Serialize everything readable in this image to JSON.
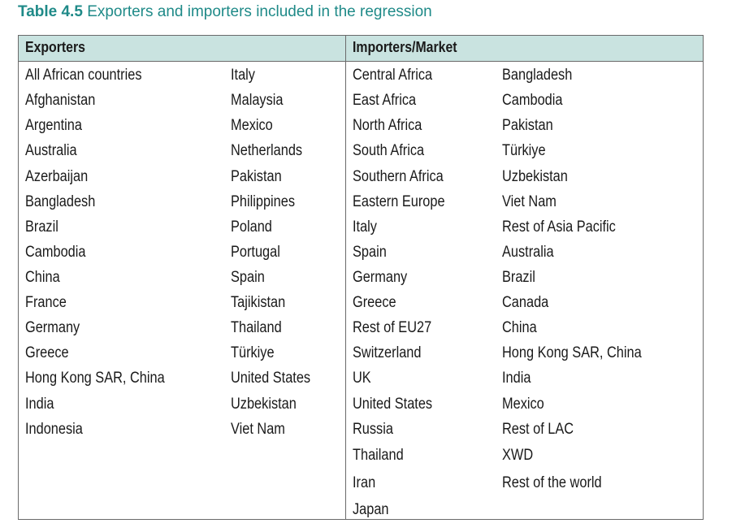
{
  "caption": {
    "number": "Table 4.5",
    "text": "Exporters and importers included in the regression"
  },
  "headers": {
    "exporters": "Exporters",
    "importers": "Importers/Market"
  },
  "exporters_col1": [
    "All African countries",
    "Afghanistan",
    "Argentina",
    "Australia",
    "Azerbaijan",
    "Bangladesh",
    "Brazil",
    "Cambodia",
    "China",
    "France",
    "Germany",
    "Greece",
    "Hong Kong SAR, China",
    "India",
    "Indonesia"
  ],
  "exporters_col2": [
    "Italy",
    "Malaysia",
    "Mexico",
    "Netherlands",
    "Pakistan",
    "Philippines",
    "Poland",
    "Portugal",
    "Spain",
    "Tajikistan",
    "Thailand",
    "Türkiye",
    "United States",
    "Uzbekistan",
    "Viet Nam"
  ],
  "importers_col1": [
    "Central Africa",
    "East Africa",
    "North Africa",
    "South Africa",
    "Southern Africa",
    "Eastern Europe",
    "Italy",
    "Spain",
    "Germany",
    "Greece",
    "Rest of EU27",
    "Switzerland",
    "UK",
    "United States",
    "Russia",
    "Thailand",
    "Iran",
    "Japan"
  ],
  "importers_col2": [
    "Bangladesh",
    "Cambodia",
    "Pakistan",
    "Türkiye",
    "Uzbekistan",
    "Viet Nam",
    "Rest of Asia Pacific",
    "Australia",
    "Brazil",
    "Canada",
    "China",
    "Hong Kong SAR, China",
    "India",
    "Mexico",
    "Rest of LAC",
    "XWD",
    "Rest of the world"
  ]
}
